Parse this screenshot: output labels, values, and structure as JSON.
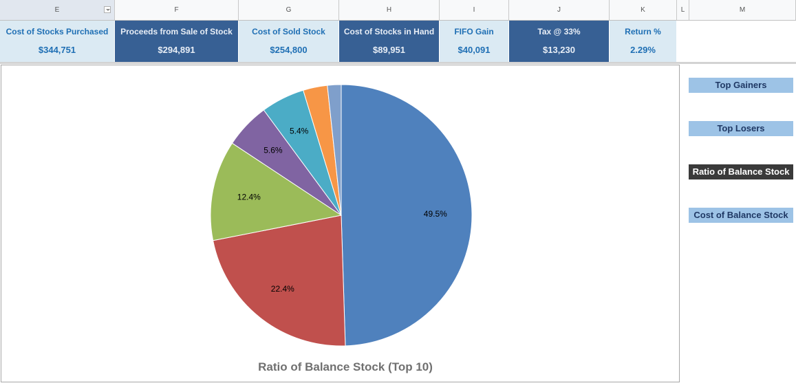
{
  "columns": [
    {
      "letter": "E",
      "w": 167,
      "selected": true,
      "filter": true
    },
    {
      "letter": "F",
      "w": 180
    },
    {
      "letter": "G",
      "w": 146
    },
    {
      "letter": "H",
      "w": 146
    },
    {
      "letter": "I",
      "w": 101
    },
    {
      "letter": "J",
      "w": 146
    },
    {
      "letter": "K",
      "w": 98
    },
    {
      "letter": "L",
      "w": 18
    },
    {
      "letter": "M",
      "w": 155
    }
  ],
  "kpis": [
    {
      "label": "Cost of Stocks Purchased",
      "value": "$344,751",
      "style": "light"
    },
    {
      "label": "Proceeds from Sale of Stock",
      "value": "$294,891",
      "style": "dark"
    },
    {
      "label": "Cost of Sold Stock",
      "value": "$254,800",
      "style": "light"
    },
    {
      "label": "Cost of Stocks in Hand",
      "value": "$89,951",
      "style": "dark"
    },
    {
      "label": "FIFO Gain",
      "value": "$40,091",
      "style": "light"
    },
    {
      "label": "Tax @ 33%",
      "value": "$13,230",
      "style": "dark"
    },
    {
      "label": "Return %",
      "value": "2.29%",
      "style": "light"
    }
  ],
  "nav_buttons": [
    {
      "label": "Top Gainers",
      "active": false
    },
    {
      "label": "Top Losers",
      "active": false
    },
    {
      "label": "Ratio of Balance Stock",
      "active": true
    },
    {
      "label": "Cost of Balance Stock",
      "active": false
    }
  ],
  "chart_data": {
    "type": "pie",
    "title": "Ratio of Balance Stock (Top 10)",
    "slices": [
      {
        "value": 49.5,
        "label": "49.5%",
        "color": "#4f81bd"
      },
      {
        "value": 22.4,
        "label": "22.4%",
        "color": "#c0504d"
      },
      {
        "value": 12.4,
        "label": "12.4%",
        "color": "#9bbb59"
      },
      {
        "value": 5.6,
        "label": "5.6%",
        "color": "#8064a2"
      },
      {
        "value": 5.4,
        "label": "5.4%",
        "color": "#4bacc6"
      },
      {
        "value": 3.0,
        "label": "",
        "color": "#f79646"
      },
      {
        "value": 1.7,
        "label": "",
        "color": "#7f9fcb"
      }
    ]
  }
}
